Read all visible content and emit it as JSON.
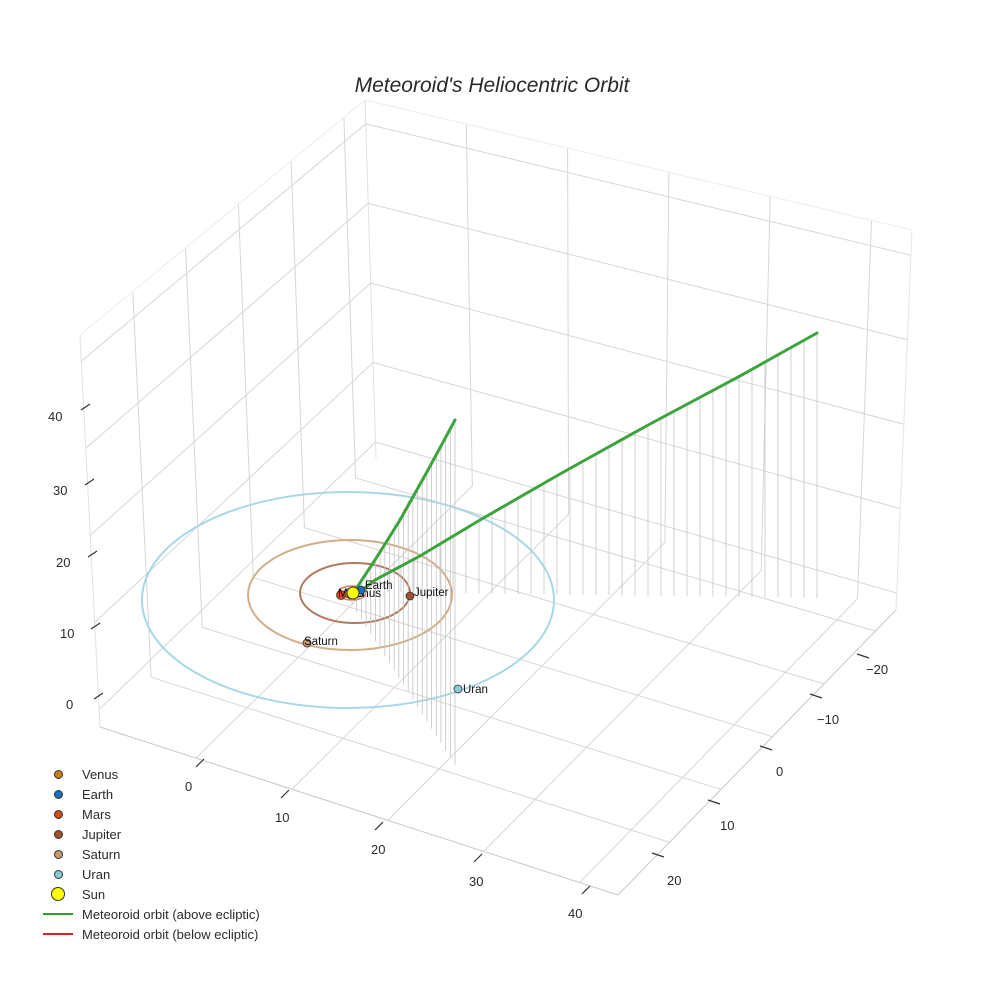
{
  "chart_data": {
    "type": "scatter3d",
    "title": "Meteoroid's Heliocentric Orbit",
    "axes": {
      "x": {
        "ticks": [
          0,
          10,
          20,
          30,
          40
        ],
        "range": [
          -5,
          45
        ]
      },
      "y": {
        "ticks": [
          -20,
          -10,
          0,
          10,
          20
        ],
        "range": [
          -25,
          25
        ]
      },
      "z": {
        "ticks": [
          0,
          10,
          20,
          30,
          40
        ],
        "range": [
          0,
          45
        ]
      }
    },
    "grid": true,
    "legend_position": "bottom-left",
    "planets": [
      {
        "name": "Venus",
        "color": "#c77d1a",
        "orbit_radius_au": 0.72
      },
      {
        "name": "Earth",
        "color": "#1f6fbf",
        "orbit_radius_au": 1.0
      },
      {
        "name": "Mars",
        "color": "#d04a1a",
        "orbit_radius_au": 1.52
      },
      {
        "name": "Jupiter",
        "color": "#a0522d",
        "orbit_radius_au": 5.2
      },
      {
        "name": "Saturn",
        "color": "#c79a6e",
        "orbit_radius_au": 9.5
      },
      {
        "name": "Uran",
        "color": "#8ec9da",
        "orbit_radius_au": 19.2
      },
      {
        "name": "Sun",
        "color": "#ffff00",
        "orbit_radius_au": 0
      }
    ],
    "series": [
      {
        "name": "Meteoroid orbit (above ecliptic)",
        "color": "#2ca02c",
        "type": "line"
      },
      {
        "name": "Meteoroid orbit (below ecliptic)",
        "color": "#e02020",
        "type": "line"
      }
    ]
  },
  "title": "Meteoroid's Heliocentric Orbit",
  "axis_labels": {
    "z": [
      "0",
      "10",
      "20",
      "30",
      "40"
    ],
    "x": [
      "0",
      "10",
      "20",
      "30",
      "40"
    ],
    "y": [
      "−20",
      "−10",
      "0",
      "10",
      "20"
    ]
  },
  "planet_labels": {
    "venus": "Venus",
    "earth": "Earth",
    "mars": "Mars",
    "jupiter": "Jupiter",
    "saturn": "Saturn",
    "uran": "Uran"
  },
  "legend": [
    {
      "label": "Venus",
      "color": "#c77d1a",
      "kind": "dot"
    },
    {
      "label": "Earth",
      "color": "#1f6fbf",
      "kind": "dot"
    },
    {
      "label": "Mars",
      "color": "#d04a1a",
      "kind": "dot"
    },
    {
      "label": "Jupiter",
      "color": "#a0522d",
      "kind": "dot"
    },
    {
      "label": "Saturn",
      "color": "#c79a6e",
      "kind": "dot"
    },
    {
      "label": "Uran",
      "color": "#8ec9da",
      "kind": "dot"
    },
    {
      "label": "Sun",
      "color": "#ffff00",
      "kind": "bigdot"
    },
    {
      "label": "Meteoroid orbit (above ecliptic)",
      "color": "#2ca02c",
      "kind": "line"
    },
    {
      "label": "Meteoroid orbit (below ecliptic)",
      "color": "#e02020",
      "kind": "line"
    }
  ]
}
